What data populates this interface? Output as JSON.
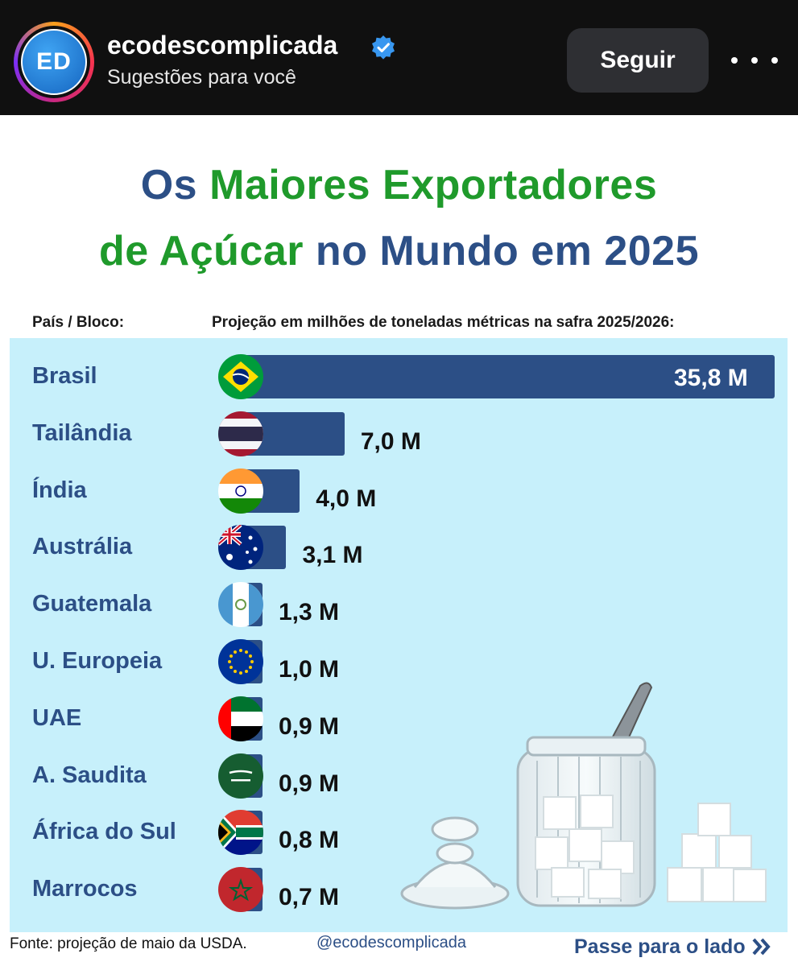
{
  "header": {
    "avatar_text": "ED",
    "username": "ecodescomplicada",
    "subtitle": "Sugestões para você",
    "follow_label": "Seguir"
  },
  "title": {
    "line1_a": "Os ",
    "line1_b": "Maiores Exportadores",
    "line2_a": "de Açúcar",
    "line2_b": " no Mundo em 2025"
  },
  "columns": {
    "country": "País / Bloco:",
    "projection": "Projeção em milhões de toneladas métricas na safra 2025/2026:"
  },
  "chart_data": {
    "type": "bar",
    "orientation": "horizontal",
    "title": "Os Maiores Exportadores de Açúcar no Mundo em 2025",
    "xlabel": "Projeção em milhões de toneladas métricas na safra 2025/2026:",
    "ylabel": "País / Bloco:",
    "categories": [
      "Brasil",
      "Tailândia",
      "Índia",
      "Austrália",
      "Guatemala",
      "U. Europeia",
      "UAE",
      "A. Saudita",
      "África do Sul",
      "Marrocos"
    ],
    "values": [
      35.8,
      7.0,
      4.0,
      3.1,
      1.3,
      1.0,
      0.9,
      0.9,
      0.8,
      0.7
    ],
    "value_labels": [
      "35,8 M",
      "7,0 M",
      "4,0 M",
      "3,1 M",
      "1,3 M",
      "1,0 M",
      "0,9 M",
      "0,9 M",
      "0,8 M",
      "0,7 M"
    ],
    "flag_icons": [
      "brazil-flag-icon",
      "thailand-flag-icon",
      "india-flag-icon",
      "australia-flag-icon",
      "guatemala-flag-icon",
      "eu-flag-icon",
      "uae-flag-icon",
      "saudi-arabia-flag-icon",
      "south-africa-flag-icon",
      "morocco-flag-icon"
    ],
    "xlim": [
      0,
      35.8
    ],
    "grid": false,
    "bar_color": "#2c4f86",
    "background_color": "#c7f0fb"
  },
  "footer": {
    "source": "Fonte: projeção de maio da USDA.",
    "handle": "@ecodescomplicada",
    "swipe": "Passe para o lado"
  },
  "colors": {
    "title_blue": "#2c4f86",
    "title_green": "#1f9a2b",
    "topbar": "#101010"
  }
}
